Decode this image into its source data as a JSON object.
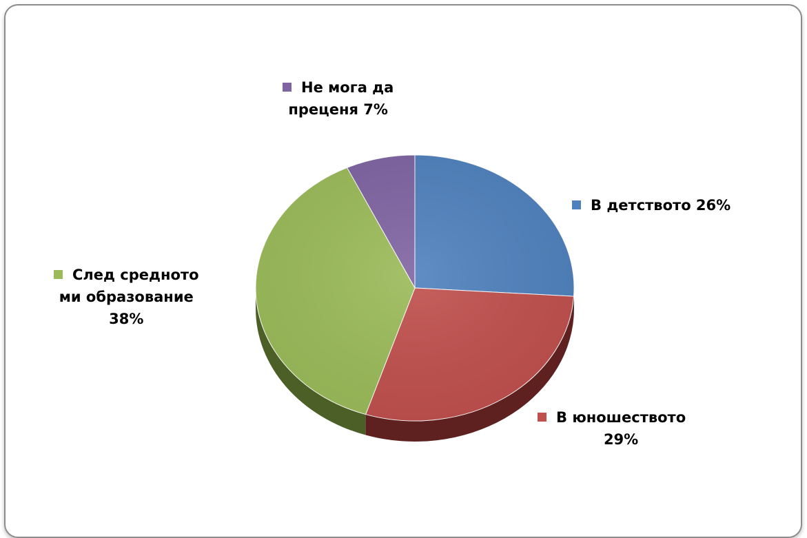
{
  "chart_data": {
    "type": "pie",
    "title": "",
    "slices": [
      {
        "name": "В детството",
        "value": 26,
        "label_line1": "В детството 26%",
        "label_line2": "",
        "label_line3": "",
        "color": "#4F81BD",
        "side_color": "#2c4a6e"
      },
      {
        "name": "В юношеството",
        "value": 29,
        "label_line1": "В юношеството",
        "label_line2": "29%",
        "label_line3": "",
        "color": "#C0504D",
        "side_color": "#5e2120"
      },
      {
        "name": "След средното ми образование",
        "value": 38,
        "label_line1": "След средното",
        "label_line2": "ми образование",
        "label_line3": "38%",
        "color": "#9BBB59",
        "side_color": "#4c5f26"
      },
      {
        "name": "Не мога да преценя",
        "value": 7,
        "label_line1": "Не мога да",
        "label_line2": "преценя 7%",
        "label_line3": "",
        "color": "#8064A2",
        "side_color": "#3d2c52"
      }
    ],
    "legend": "data labels next to slices"
  }
}
